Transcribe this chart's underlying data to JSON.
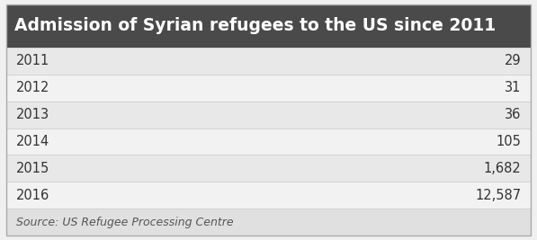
{
  "title": "Admission of Syrian refugees to the US since 2011",
  "title_bg_color": "#4a4a4a",
  "title_text_color": "#ffffff",
  "title_fontsize": 13.5,
  "rows": [
    {
      "year": "2011",
      "value": "29"
    },
    {
      "year": "2012",
      "value": "31"
    },
    {
      "year": "2013",
      "value": "36"
    },
    {
      "year": "2014",
      "value": "105"
    },
    {
      "year": "2015",
      "value": "1,682"
    },
    {
      "year": "2016",
      "value": "12,587"
    }
  ],
  "row_bg_odd": "#e8e8e8",
  "row_bg_even": "#f2f2f2",
  "row_text_color": "#333333",
  "row_fontsize": 10.5,
  "source_text": "Source: US Refugee Processing Centre",
  "source_fontsize": 9,
  "source_bg_color": "#e0e0e0",
  "source_text_color": "#555555",
  "border_color": "#cccccc",
  "fig_bg_color": "#f0f0f0",
  "outer_border_color": "#aaaaaa"
}
